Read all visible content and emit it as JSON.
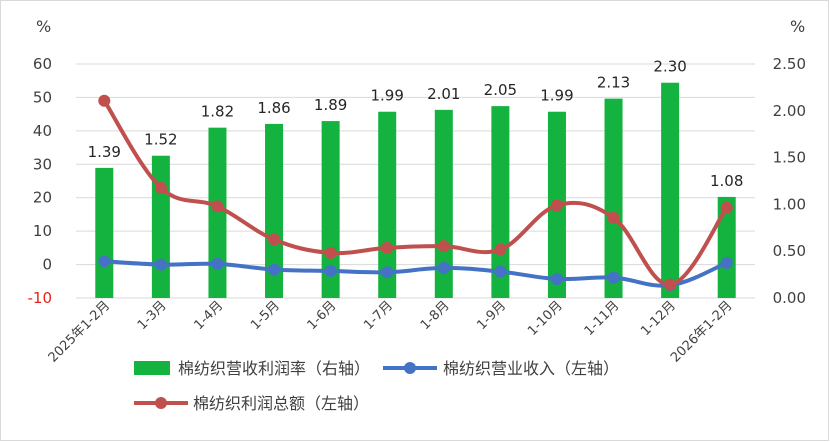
{
  "chart_data": {
    "type": "bar+line",
    "categories": [
      "2025年1-2月",
      "1-3月",
      "1-4月",
      "1-5月",
      "1-6月",
      "1-7月",
      "1-8月",
      "1-9月",
      "1-10月",
      "1-11月",
      "1-12月",
      "2026年1-2月"
    ],
    "left_axis": {
      "unit": "%",
      "min": -10,
      "max": 60,
      "step": 10,
      "ticks": [
        "-10",
        "0",
        "10",
        "20",
        "30",
        "40",
        "50",
        "60"
      ]
    },
    "right_axis": {
      "unit": "%",
      "min": 0,
      "max": 2.5,
      "step": 0.5,
      "ticks": [
        "0.00",
        "0.50",
        "1.00",
        "1.50",
        "2.00",
        "2.50"
      ]
    },
    "series": [
      {
        "name": "棉纺织营收利润率（右轴）",
        "type": "bar",
        "axis": "right",
        "color": "#14b23f",
        "values": [
          1.39,
          1.52,
          1.82,
          1.86,
          1.89,
          1.99,
          2.01,
          2.05,
          1.99,
          2.13,
          2.3,
          1.08
        ],
        "labels": [
          "1.39",
          "1.52",
          "1.82",
          "1.86",
          "1.89",
          "1.99",
          "2.01",
          "2.05",
          "1.99",
          "2.13",
          "2.30",
          "1.08"
        ]
      },
      {
        "name": "棉纺织营业收入（左轴）",
        "type": "line",
        "axis": "left",
        "color": "#4472c4",
        "values": [
          1,
          0,
          0.2,
          -1.5,
          -1.9,
          -2.3,
          -1,
          -2.1,
          -4.3,
          -3.9,
          -6.2,
          0.5
        ]
      },
      {
        "name": "棉纺织利润总额（左轴）",
        "type": "line",
        "axis": "left",
        "color": "#c0504d",
        "values": [
          49,
          23,
          17.4,
          7.5,
          3.5,
          5,
          5.5,
          4.5,
          17.7,
          14,
          -6,
          17
        ]
      }
    ],
    "grid": true,
    "legend": "bottom"
  }
}
